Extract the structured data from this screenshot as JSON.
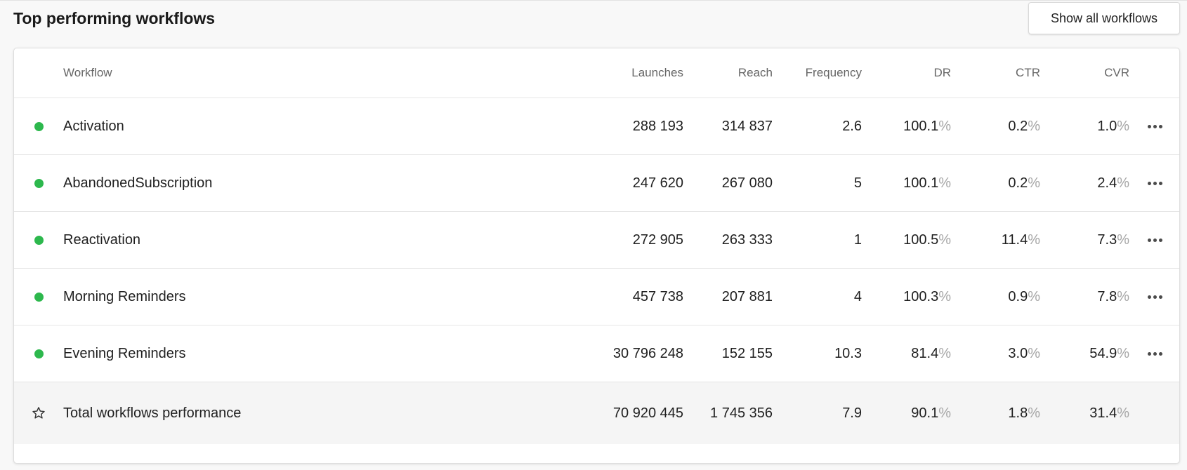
{
  "header": {
    "title": "Top performing workflows",
    "show_all_label": "Show all workflows"
  },
  "table": {
    "columns": {
      "workflow": "Workflow",
      "launches": "Launches",
      "reach": "Reach",
      "frequency": "Frequency",
      "dr": "DR",
      "ctr": "CTR",
      "cvr": "CVR"
    },
    "percent_sign": "%",
    "status_color": "#2db84d",
    "rows": [
      {
        "name": "Activation",
        "launches": "288 193",
        "reach": "314 837",
        "frequency": "2.6",
        "dr": "100.1",
        "ctr": "0.2",
        "cvr": "1.0"
      },
      {
        "name": "AbandonedSubscription",
        "launches": "247 620",
        "reach": "267 080",
        "frequency": "5",
        "dr": "100.1",
        "ctr": "0.2",
        "cvr": "2.4"
      },
      {
        "name": "Reactivation",
        "launches": "272 905",
        "reach": "263 333",
        "frequency": "1",
        "dr": "100.5",
        "ctr": "11.4",
        "cvr": "7.3"
      },
      {
        "name": "Morning Reminders",
        "launches": "457 738",
        "reach": "207 881",
        "frequency": "4",
        "dr": "100.3",
        "ctr": "0.9",
        "cvr": "7.8"
      },
      {
        "name": "Evening Reminders",
        "launches": "30 796 248",
        "reach": "152 155",
        "frequency": "10.3",
        "dr": "81.4",
        "ctr": "3.0",
        "cvr": "54.9"
      }
    ],
    "total": {
      "name": "Total workflows performance",
      "icon": "star-icon",
      "launches": "70 920 445",
      "reach": "1 745 356",
      "frequency": "7.9",
      "dr": "90.1",
      "ctr": "1.8",
      "cvr": "31.4"
    }
  }
}
